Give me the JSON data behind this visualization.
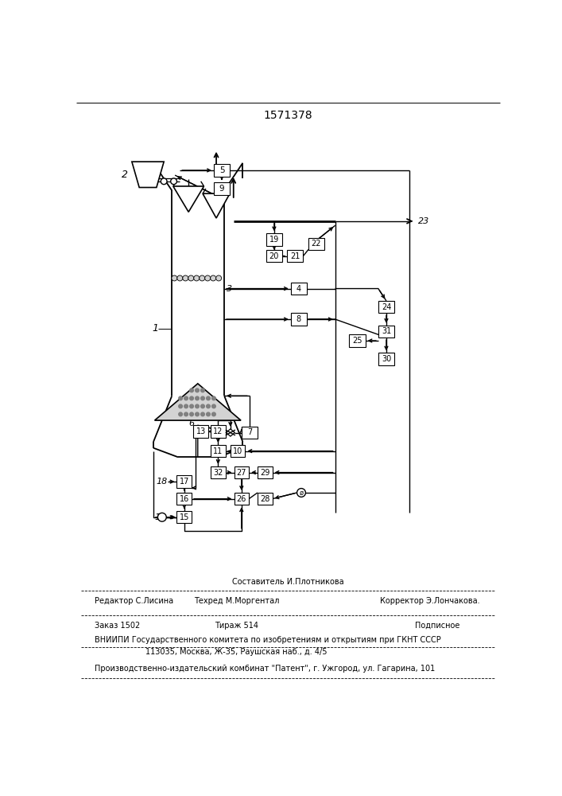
{
  "title": "1571378",
  "bg_color": "#ffffff",
  "line_color": "#000000",
  "footer": {
    "composer": "Составитель И.Плотникова",
    "editor": "Редактор С.Лисина",
    "techred": "Техред М.Моргентал",
    "corrector": "Корректор Э.Лончакова.",
    "order": "Заказ 1502",
    "tirazh": "Тираж 514",
    "podpisnoe": "Подписное",
    "vniipи": "ВНИИПИ Государственного комитета по изобретениям и открытиям при ГКНТ СССР",
    "address": "113035, Москва, Ж-35, Раушская наб., д. 4/5",
    "patent": "Производственно-издательский комбинат \"Патент\", г. Ужгород, ул. Гагарина, 101"
  }
}
